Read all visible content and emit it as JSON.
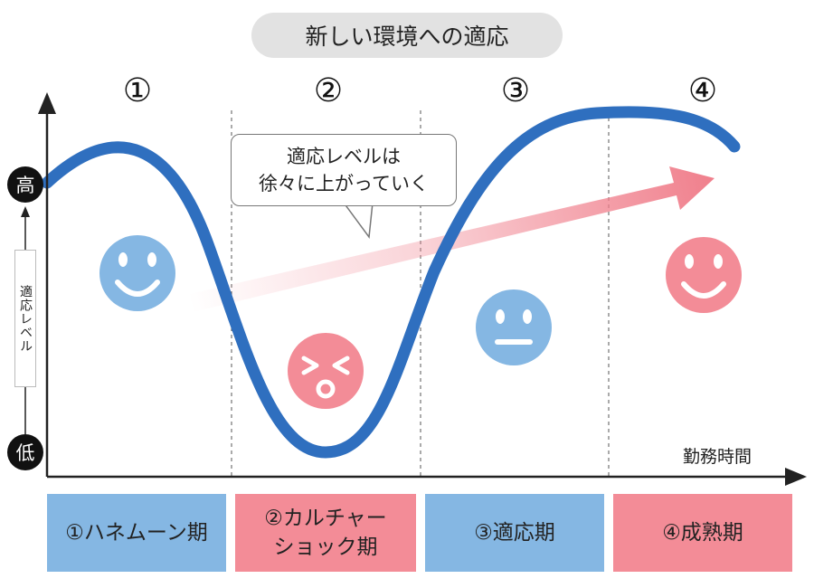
{
  "title": "新しい環境への適応",
  "phase_numbers": [
    "①",
    "②",
    "③",
    "④"
  ],
  "y_axis": {
    "high": "高",
    "low": "低",
    "label": "適応レベル"
  },
  "x_axis": {
    "label": "勤務時間"
  },
  "callout": {
    "line1": "適応レベルは",
    "line2": "徐々に上がっていく"
  },
  "phases": [
    {
      "label": "①ハネムーン期",
      "color": "#85b7e3"
    },
    {
      "label_line1": "②カルチャー",
      "label_line2": "ショック期",
      "color": "#f38c97"
    },
    {
      "label": "③適応期",
      "color": "#85b7e3"
    },
    {
      "label": "④成熟期",
      "color": "#f38c97"
    }
  ],
  "faces": [
    {
      "phase": 1,
      "expression": "smile",
      "color": "#85b7e3"
    },
    {
      "phase": 2,
      "expression": "distress",
      "color": "#f38c97"
    },
    {
      "phase": 3,
      "expression": "neutral",
      "color": "#85b7e3"
    },
    {
      "phase": 4,
      "expression": "smile",
      "color": "#f38c97"
    }
  ],
  "colors": {
    "curve": "#2f6fbf",
    "trend_arrow": "#f07f8c",
    "axis": "#222222"
  }
}
